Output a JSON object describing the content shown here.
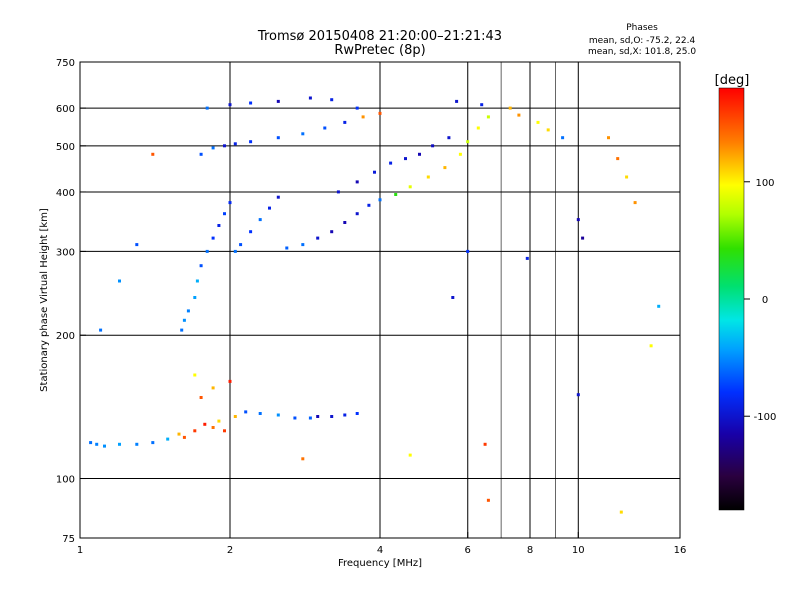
{
  "header": {
    "title": "Tromsø 20150408 21:20:00–21:21:43",
    "subtitle": "RwPretec (8p)",
    "stats_title": "Phases",
    "stats_line1": "mean, sd,O: -75.2, 22.4",
    "stats_line2": "mean, sd,X: 101.8, 25.0"
  },
  "colorbar": {
    "label": "[deg]",
    "ticks": [
      {
        "value": 100,
        "label": "100"
      },
      {
        "value": 0,
        "label": "0"
      },
      {
        "value": -100,
        "label": "-100"
      }
    ],
    "range": [
      -180,
      180
    ]
  },
  "chart_data": {
    "type": "scatter",
    "title": "Tromsø 20150408 21:20:00–21:21:43",
    "subtitle": "RwPretec (8p)",
    "xlabel": "Frequency [MHz]",
    "ylabel": "Stationary phase Virtual Height [km]",
    "xscale": "log",
    "yscale": "log",
    "xlim": [
      1,
      16
    ],
    "ylim": [
      75,
      750
    ],
    "xticks": [
      1,
      2,
      4,
      6,
      8,
      10,
      16
    ],
    "yticks": [
      75,
      100,
      200,
      300,
      400,
      500,
      600,
      750
    ],
    "grid_x": [
      2,
      4,
      6,
      8,
      10
    ],
    "grid_y": [
      100,
      200,
      300,
      400,
      500,
      600
    ],
    "minor_x": [
      7,
      9
    ],
    "color_by": "phase (deg)",
    "color_range": [
      -180,
      180
    ],
    "points": [
      [
        1.05,
        119,
        -60
      ],
      [
        1.08,
        118,
        -55
      ],
      [
        1.12,
        117,
        -50
      ],
      [
        1.2,
        118,
        -45
      ],
      [
        1.3,
        118,
        -55
      ],
      [
        1.4,
        119,
        -60
      ],
      [
        1.5,
        121,
        -40
      ],
      [
        1.58,
        124,
        120
      ],
      [
        1.62,
        122,
        150
      ],
      [
        1.7,
        126,
        160
      ],
      [
        1.78,
        130,
        170
      ],
      [
        1.85,
        128,
        140
      ],
      [
        1.9,
        132,
        110
      ],
      [
        1.95,
        126,
        160
      ],
      [
        2.05,
        135,
        120
      ],
      [
        2.15,
        138,
        -70
      ],
      [
        2.3,
        137,
        -60
      ],
      [
        2.5,
        136,
        -50
      ],
      [
        2.7,
        134,
        -70
      ],
      [
        2.9,
        134,
        -65
      ],
      [
        3.0,
        135,
        -110
      ],
      [
        3.2,
        135,
        -100
      ],
      [
        3.4,
        136,
        -90
      ],
      [
        3.6,
        137,
        -80
      ],
      [
        1.75,
        148,
        150
      ],
      [
        1.85,
        155,
        120
      ],
      [
        1.7,
        165,
        100
      ],
      [
        2.0,
        160,
        170
      ],
      [
        1.6,
        205,
        -60
      ],
      [
        1.62,
        215,
        -50
      ],
      [
        1.65,
        225,
        -55
      ],
      [
        1.7,
        240,
        -45
      ],
      [
        1.72,
        260,
        -40
      ],
      [
        1.75,
        280,
        -70
      ],
      [
        1.8,
        300,
        -60
      ],
      [
        1.85,
        320,
        -80
      ],
      [
        1.9,
        340,
        -90
      ],
      [
        1.95,
        360,
        -75
      ],
      [
        2.0,
        380,
        -85
      ],
      [
        2.05,
        300,
        -60
      ],
      [
        2.1,
        310,
        -70
      ],
      [
        2.2,
        330,
        -80
      ],
      [
        2.3,
        350,
        -60
      ],
      [
        2.4,
        370,
        -90
      ],
      [
        2.5,
        390,
        -100
      ],
      [
        2.6,
        305,
        -65
      ],
      [
        2.8,
        310,
        -60
      ],
      [
        3.0,
        320,
        -100
      ],
      [
        3.2,
        330,
        -110
      ],
      [
        3.4,
        345,
        -110
      ],
      [
        3.6,
        360,
        -100
      ],
      [
        3.8,
        375,
        -90
      ],
      [
        4.0,
        385,
        -60
      ],
      [
        4.3,
        395,
        40
      ],
      [
        4.6,
        410,
        90
      ],
      [
        5.0,
        430,
        110
      ],
      [
        5.4,
        450,
        120
      ],
      [
        5.8,
        480,
        100
      ],
      [
        6.0,
        510,
        80
      ],
      [
        6.3,
        545,
        100
      ],
      [
        6.6,
        575,
        80
      ],
      [
        3.3,
        400,
        -100
      ],
      [
        3.6,
        420,
        -110
      ],
      [
        3.9,
        440,
        -95
      ],
      [
        4.2,
        460,
        -90
      ],
      [
        4.5,
        470,
        -100
      ],
      [
        4.8,
        480,
        -110
      ],
      [
        5.1,
        500,
        -105
      ],
      [
        5.5,
        520,
        -100
      ],
      [
        1.75,
        480,
        -70
      ],
      [
        1.85,
        495,
        -60
      ],
      [
        1.95,
        500,
        -100
      ],
      [
        2.05,
        505,
        -90
      ],
      [
        2.2,
        510,
        -80
      ],
      [
        2.5,
        520,
        -70
      ],
      [
        2.8,
        530,
        -60
      ],
      [
        3.1,
        545,
        -70
      ],
      [
        3.4,
        560,
        -90
      ],
      [
        3.7,
        575,
        130
      ],
      [
        4.0,
        585,
        150
      ],
      [
        1.8,
        600,
        -60
      ],
      [
        2.0,
        610,
        -100
      ],
      [
        2.2,
        615,
        -80
      ],
      [
        2.5,
        620,
        -110
      ],
      [
        2.9,
        630,
        -100
      ],
      [
        3.2,
        625,
        -90
      ],
      [
        3.6,
        600,
        -80
      ],
      [
        5.7,
        620,
        -100
      ],
      [
        6.4,
        610,
        -90
      ],
      [
        7.3,
        600,
        120
      ],
      [
        7.6,
        580,
        130
      ],
      [
        8.3,
        560,
        100
      ],
      [
        8.7,
        540,
        110
      ],
      [
        9.3,
        520,
        -60
      ],
      [
        10.0,
        350,
        -110
      ],
      [
        10.2,
        320,
        -120
      ],
      [
        11.5,
        520,
        130
      ],
      [
        12.0,
        470,
        140
      ],
      [
        12.5,
        430,
        110
      ],
      [
        13.0,
        380,
        130
      ],
      [
        1.1,
        205,
        -60
      ],
      [
        1.2,
        260,
        -50
      ],
      [
        1.3,
        310,
        -70
      ],
      [
        1.4,
        480,
        150
      ],
      [
        2.8,
        110,
        140
      ],
      [
        4.6,
        112,
        100
      ],
      [
        6.5,
        118,
        160
      ],
      [
        6.6,
        90,
        150
      ],
      [
        12.2,
        85,
        110
      ],
      [
        14.0,
        190,
        100
      ],
      [
        14.5,
        230,
        -40
      ],
      [
        7.9,
        290,
        -90
      ],
      [
        6.0,
        300,
        -80
      ],
      [
        5.6,
        240,
        -100
      ],
      [
        10.0,
        150,
        -100
      ]
    ]
  }
}
